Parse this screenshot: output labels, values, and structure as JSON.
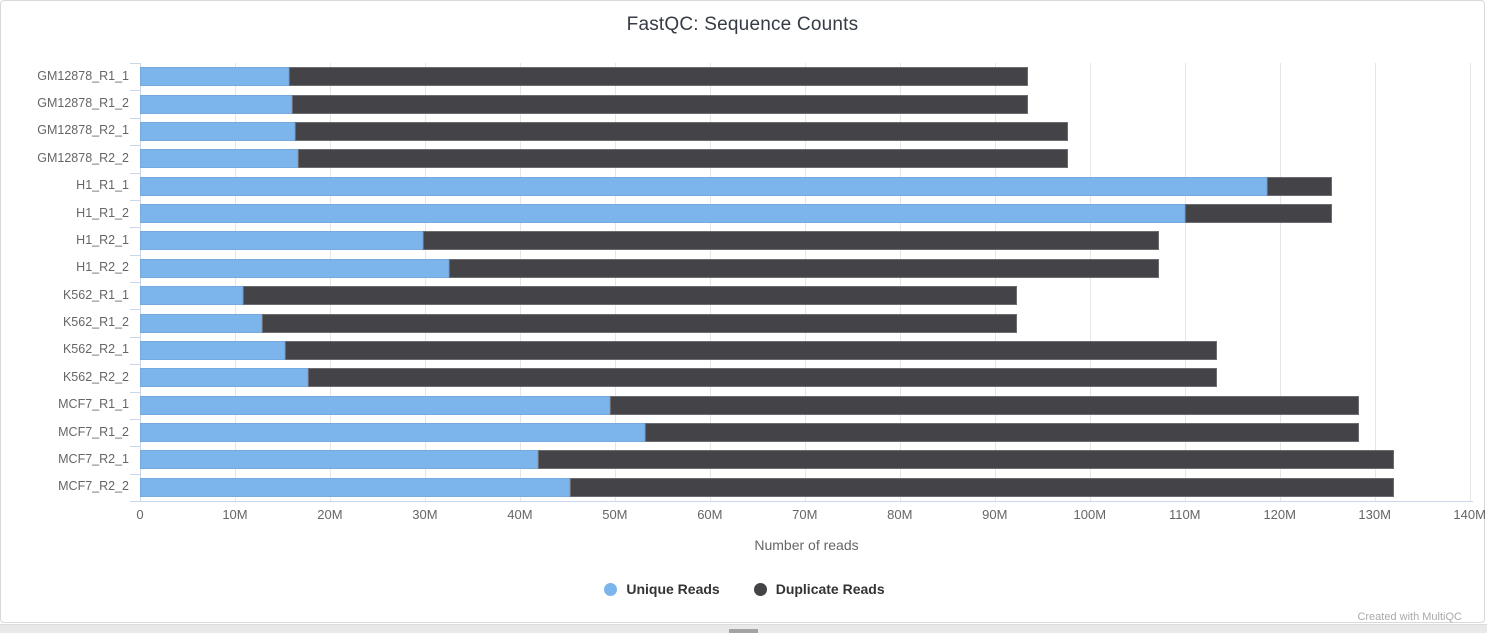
{
  "title": "FastQC: Sequence Counts",
  "credit": "Created with MultiQC",
  "colors": {
    "unique": "#7cb5ec",
    "duplicate": "#434348",
    "gridline": "#e6e6e6",
    "axis_tick": "#ccd6eb",
    "axis_label": "#666666",
    "title_text": "#353c45",
    "legend_text": "#333333"
  },
  "chart_data": {
    "type": "bar",
    "orientation": "horizontal",
    "stacked": true,
    "title": "FastQC: Sequence Counts",
    "xlabel": "Number of reads",
    "ylabel": "",
    "units": "millions of reads",
    "grid": true,
    "legend_position": "bottom",
    "xlim_m": [
      0,
      140.35
    ],
    "xticks_m": [
      0,
      10,
      20,
      30,
      40,
      50,
      60,
      70,
      80,
      90,
      100,
      110,
      120,
      130,
      140
    ],
    "xtick_labels": [
      "0",
      "10M",
      "20M",
      "30M",
      "40M",
      "50M",
      "60M",
      "70M",
      "80M",
      "90M",
      "100M",
      "110M",
      "120M",
      "130M",
      "140M"
    ],
    "categories": [
      "GM12878_R1_1",
      "GM12878_R1_2",
      "GM12878_R2_1",
      "GM12878_R2_2",
      "H1_R1_1",
      "H1_R1_2",
      "H1_R2_1",
      "H1_R2_2",
      "K562_R1_1",
      "K562_R1_2",
      "K562_R2_1",
      "K562_R2_2",
      "MCF7_R1_1",
      "MCF7_R1_2",
      "MCF7_R2_1",
      "MCF7_R2_2"
    ],
    "series": [
      {
        "name": "Unique Reads",
        "color": "#7cb5ec",
        "values_m": [
          15.7,
          16.0,
          16.3,
          16.6,
          118.7,
          110.0,
          29.8,
          32.5,
          10.8,
          12.8,
          15.3,
          17.7,
          49.5,
          53.2,
          41.9,
          45.3
        ]
      },
      {
        "name": "Duplicate Reads",
        "color": "#434348",
        "values_m": [
          77.8,
          77.5,
          81.4,
          81.1,
          6.8,
          15.5,
          77.5,
          74.8,
          81.5,
          79.5,
          98.1,
          95.7,
          78.8,
          75.1,
          90.1,
          86.7
        ]
      }
    ],
    "totals_m": [
      93.5,
      93.5,
      97.7,
      97.7,
      125.5,
      125.5,
      107.3,
      107.3,
      92.3,
      92.3,
      113.4,
      113.4,
      128.3,
      128.3,
      132.0,
      132.0
    ]
  },
  "legend": {
    "items": [
      {
        "label": "Unique Reads",
        "color": "#7cb5ec"
      },
      {
        "label": "Duplicate Reads",
        "color": "#434348"
      }
    ]
  }
}
